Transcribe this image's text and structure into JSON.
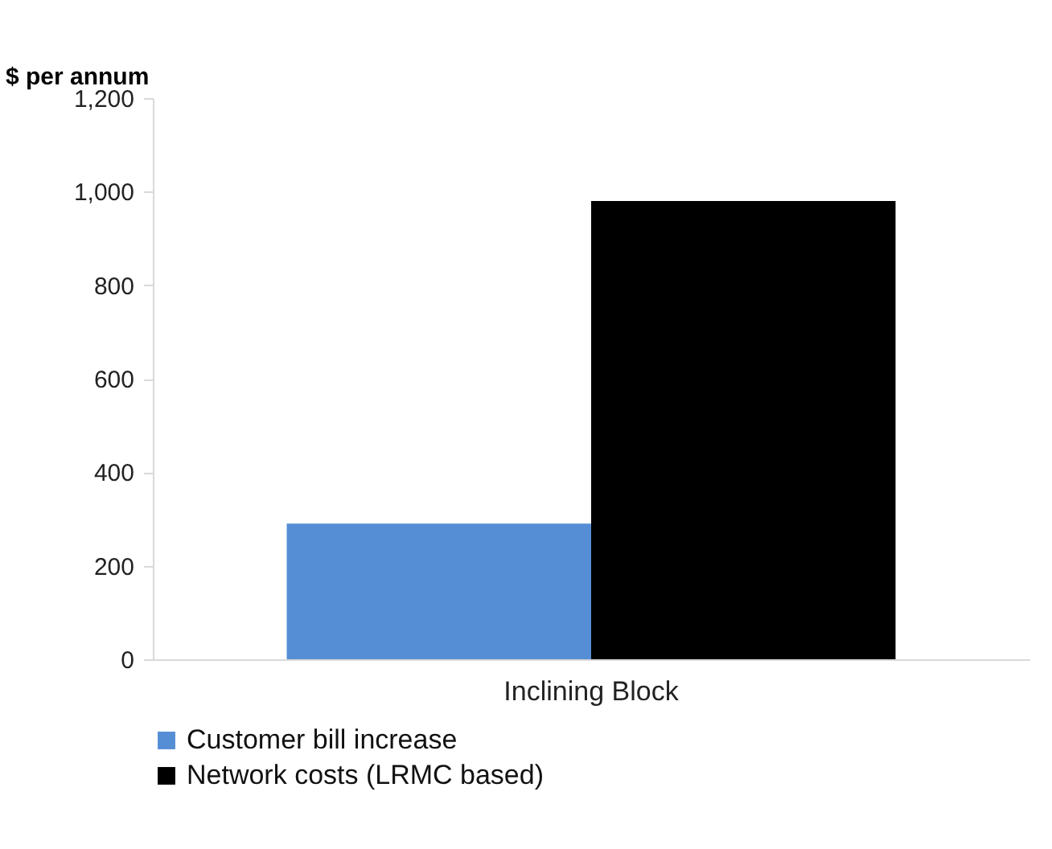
{
  "chart_data": {
    "type": "bar",
    "ylabel": "$ per annum",
    "categories": [
      "Inclining Block"
    ],
    "series": [
      {
        "name": "Customer bill increase",
        "color": "#558ed5",
        "values": [
          290
        ]
      },
      {
        "name": "Network costs (LRMC based)",
        "color": "#000000",
        "values": [
          980
        ]
      }
    ],
    "ylim": [
      0,
      1200
    ],
    "yticks": [
      0,
      {
        "value": 200,
        "label": "200"
      },
      {
        "value": 400,
        "label": "400"
      },
      {
        "value": 600,
        "label": "600"
      },
      {
        "value": 800,
        "label": "800"
      },
      {
        "value": 1000,
        "label": "1,000"
      },
      {
        "value": 1200,
        "label": "1,200"
      }
    ],
    "grid": false,
    "legend": "bottom"
  }
}
